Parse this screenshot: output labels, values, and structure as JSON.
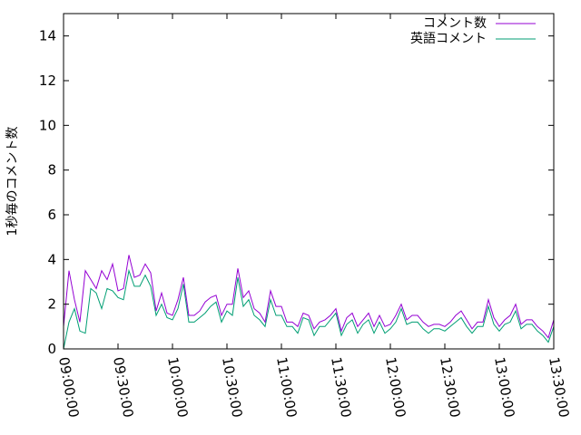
{
  "chart_data": {
    "type": "line",
    "ylabel": "1秒毎のコメント数",
    "xlabel": "",
    "title": "",
    "ylim": [
      0,
      15
    ],
    "xlim": [
      "09:00:00",
      "13:30:00"
    ],
    "y_ticks": [
      "0",
      "2",
      "4",
      "6",
      "8",
      "10",
      "12",
      "14"
    ],
    "x_ticks": [
      "09:00:00",
      "09:30:00",
      "10:00:00",
      "10:30:00",
      "11:00:00",
      "11:30:00",
      "12:00:00",
      "12:30:00",
      "13:00:00",
      "13:30:00"
    ],
    "legend_position": "top-right",
    "grid": false,
    "series": [
      {
        "name": "コメント数",
        "color": "#9400d3",
        "points": [
          [
            "09:00:00",
            1.0
          ],
          [
            "09:03:00",
            3.5
          ],
          [
            "09:06:00",
            2.2
          ],
          [
            "09:09:00",
            1.2
          ],
          [
            "09:12:00",
            3.5
          ],
          [
            "09:15:00",
            3.1
          ],
          [
            "09:18:00",
            2.7
          ],
          [
            "09:21:00",
            3.5
          ],
          [
            "09:24:00",
            3.1
          ],
          [
            "09:27:00",
            3.8
          ],
          [
            "09:30:00",
            2.6
          ],
          [
            "09:33:00",
            2.7
          ],
          [
            "09:36:00",
            4.2
          ],
          [
            "09:39:00",
            3.2
          ],
          [
            "09:42:00",
            3.3
          ],
          [
            "09:45:00",
            3.8
          ],
          [
            "09:48:00",
            3.4
          ],
          [
            "09:51:00",
            1.7
          ],
          [
            "09:54:00",
            2.5
          ],
          [
            "09:57:00",
            1.6
          ],
          [
            "10:00:00",
            1.5
          ],
          [
            "10:03:00",
            2.2
          ],
          [
            "10:06:00",
            3.2
          ],
          [
            "10:09:00",
            1.5
          ],
          [
            "10:12:00",
            1.5
          ],
          [
            "10:15:00",
            1.7
          ],
          [
            "10:18:00",
            2.1
          ],
          [
            "10:21:00",
            2.3
          ],
          [
            "10:24:00",
            2.4
          ],
          [
            "10:27:00",
            1.5
          ],
          [
            "10:30:00",
            2.0
          ],
          [
            "10:33:00",
            2.0
          ],
          [
            "10:36:00",
            3.6
          ],
          [
            "10:39:00",
            2.3
          ],
          [
            "10:42:00",
            2.6
          ],
          [
            "10:45:00",
            1.8
          ],
          [
            "10:48:00",
            1.6
          ],
          [
            "10:51:00",
            1.2
          ],
          [
            "10:54:00",
            2.6
          ],
          [
            "10:57:00",
            1.9
          ],
          [
            "11:00:00",
            1.9
          ],
          [
            "11:03:00",
            1.2
          ],
          [
            "11:06:00",
            1.2
          ],
          [
            "11:09:00",
            1.0
          ],
          [
            "11:12:00",
            1.6
          ],
          [
            "11:15:00",
            1.5
          ],
          [
            "11:18:00",
            0.9
          ],
          [
            "11:21:00",
            1.2
          ],
          [
            "11:24:00",
            1.3
          ],
          [
            "11:27:00",
            1.5
          ],
          [
            "11:30:00",
            1.8
          ],
          [
            "11:33:00",
            0.8
          ],
          [
            "11:36:00",
            1.4
          ],
          [
            "11:39:00",
            1.6
          ],
          [
            "11:42:00",
            1.0
          ],
          [
            "11:45:00",
            1.3
          ],
          [
            "11:48:00",
            1.6
          ],
          [
            "11:51:00",
            1.0
          ],
          [
            "11:54:00",
            1.5
          ],
          [
            "11:57:00",
            1.0
          ],
          [
            "12:00:00",
            1.1
          ],
          [
            "12:03:00",
            1.5
          ],
          [
            "12:06:00",
            2.0
          ],
          [
            "12:09:00",
            1.3
          ],
          [
            "12:12:00",
            1.5
          ],
          [
            "12:15:00",
            1.5
          ],
          [
            "12:18:00",
            1.2
          ],
          [
            "12:21:00",
            1.0
          ],
          [
            "12:24:00",
            1.1
          ],
          [
            "12:27:00",
            1.1
          ],
          [
            "12:30:00",
            1.0
          ],
          [
            "12:33:00",
            1.2
          ],
          [
            "12:36:00",
            1.5
          ],
          [
            "12:39:00",
            1.7
          ],
          [
            "12:42:00",
            1.3
          ],
          [
            "12:45:00",
            0.9
          ],
          [
            "12:48:00",
            1.2
          ],
          [
            "12:51:00",
            1.2
          ],
          [
            "12:54:00",
            2.2
          ],
          [
            "12:57:00",
            1.4
          ],
          [
            "13:00:00",
            1.0
          ],
          [
            "13:03:00",
            1.3
          ],
          [
            "13:06:00",
            1.5
          ],
          [
            "13:09:00",
            2.0
          ],
          [
            "13:12:00",
            1.1
          ],
          [
            "13:15:00",
            1.3
          ],
          [
            "13:18:00",
            1.3
          ],
          [
            "13:21:00",
            1.0
          ],
          [
            "13:24:00",
            0.8
          ],
          [
            "13:27:00",
            0.5
          ],
          [
            "13:30:00",
            1.3
          ]
        ]
      },
      {
        "name": "英語コメント",
        "color": "#009e73",
        "points": [
          [
            "09:00:00",
            0.0
          ],
          [
            "09:03:00",
            1.2
          ],
          [
            "09:06:00",
            1.8
          ],
          [
            "09:09:00",
            0.8
          ],
          [
            "09:12:00",
            0.7
          ],
          [
            "09:15:00",
            2.7
          ],
          [
            "09:18:00",
            2.5
          ],
          [
            "09:21:00",
            1.8
          ],
          [
            "09:24:00",
            2.7
          ],
          [
            "09:27:00",
            2.6
          ],
          [
            "09:30:00",
            2.3
          ],
          [
            "09:33:00",
            2.2
          ],
          [
            "09:36:00",
            3.5
          ],
          [
            "09:39:00",
            2.8
          ],
          [
            "09:42:00",
            2.8
          ],
          [
            "09:45:00",
            3.3
          ],
          [
            "09:48:00",
            2.8
          ],
          [
            "09:51:00",
            1.5
          ],
          [
            "09:54:00",
            2.0
          ],
          [
            "09:57:00",
            1.4
          ],
          [
            "10:00:00",
            1.3
          ],
          [
            "10:03:00",
            1.8
          ],
          [
            "10:06:00",
            2.9
          ],
          [
            "10:09:00",
            1.2
          ],
          [
            "10:12:00",
            1.2
          ],
          [
            "10:15:00",
            1.4
          ],
          [
            "10:18:00",
            1.6
          ],
          [
            "10:21:00",
            1.9
          ],
          [
            "10:24:00",
            2.1
          ],
          [
            "10:27:00",
            1.2
          ],
          [
            "10:30:00",
            1.7
          ],
          [
            "10:33:00",
            1.5
          ],
          [
            "10:36:00",
            3.2
          ],
          [
            "10:39:00",
            1.9
          ],
          [
            "10:42:00",
            2.2
          ],
          [
            "10:45:00",
            1.5
          ],
          [
            "10:48:00",
            1.3
          ],
          [
            "10:51:00",
            1.0
          ],
          [
            "10:54:00",
            2.2
          ],
          [
            "10:57:00",
            1.5
          ],
          [
            "11:00:00",
            1.5
          ],
          [
            "11:03:00",
            1.0
          ],
          [
            "11:06:00",
            1.0
          ],
          [
            "11:09:00",
            0.7
          ],
          [
            "11:12:00",
            1.4
          ],
          [
            "11:15:00",
            1.3
          ],
          [
            "11:18:00",
            0.6
          ],
          [
            "11:21:00",
            1.0
          ],
          [
            "11:24:00",
            1.0
          ],
          [
            "11:27:00",
            1.3
          ],
          [
            "11:30:00",
            1.6
          ],
          [
            "11:33:00",
            0.6
          ],
          [
            "11:36:00",
            1.1
          ],
          [
            "11:39:00",
            1.3
          ],
          [
            "11:42:00",
            0.7
          ],
          [
            "11:45:00",
            1.1
          ],
          [
            "11:48:00",
            1.3
          ],
          [
            "11:51:00",
            0.7
          ],
          [
            "11:54:00",
            1.2
          ],
          [
            "11:57:00",
            0.7
          ],
          [
            "12:00:00",
            0.9
          ],
          [
            "12:03:00",
            1.2
          ],
          [
            "12:06:00",
            1.8
          ],
          [
            "12:09:00",
            1.1
          ],
          [
            "12:12:00",
            1.2
          ],
          [
            "12:15:00",
            1.2
          ],
          [
            "12:18:00",
            0.9
          ],
          [
            "12:21:00",
            0.7
          ],
          [
            "12:24:00",
            0.9
          ],
          [
            "12:27:00",
            0.9
          ],
          [
            "12:30:00",
            0.8
          ],
          [
            "12:33:00",
            1.0
          ],
          [
            "12:36:00",
            1.2
          ],
          [
            "12:39:00",
            1.4
          ],
          [
            "12:42:00",
            1.0
          ],
          [
            "12:45:00",
            0.7
          ],
          [
            "12:48:00",
            1.0
          ],
          [
            "12:51:00",
            1.0
          ],
          [
            "12:54:00",
            1.9
          ],
          [
            "12:57:00",
            1.1
          ],
          [
            "13:00:00",
            0.8
          ],
          [
            "13:03:00",
            1.1
          ],
          [
            "13:06:00",
            1.2
          ],
          [
            "13:09:00",
            1.7
          ],
          [
            "13:12:00",
            0.9
          ],
          [
            "13:15:00",
            1.1
          ],
          [
            "13:18:00",
            1.1
          ],
          [
            "13:21:00",
            0.8
          ],
          [
            "13:24:00",
            0.6
          ],
          [
            "13:27:00",
            0.3
          ],
          [
            "13:30:00",
            1.0
          ]
        ]
      }
    ]
  }
}
